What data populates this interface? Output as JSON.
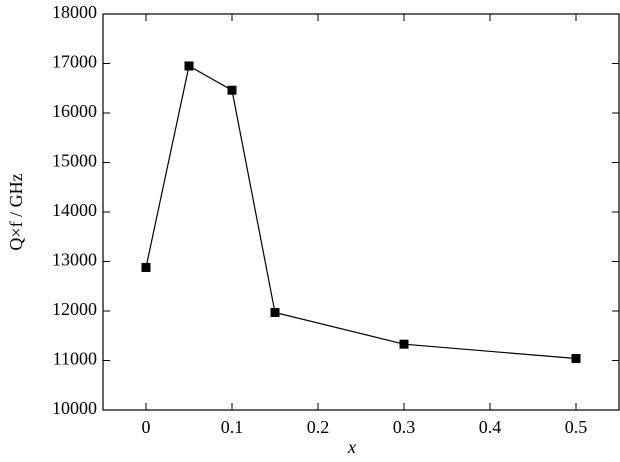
{
  "chart_data": {
    "type": "line",
    "x_label": "x",
    "y_label": "Q×f / GHz",
    "x": [
      0,
      0.05,
      0.1,
      0.15,
      0.3,
      0.5
    ],
    "series": [
      {
        "color": "#000000",
        "values": [
          12880,
          16950,
          16460,
          11970,
          11330,
          11040
        ]
      }
    ],
    "xlim": [
      -0.05,
      0.55
    ],
    "xticks": [
      0,
      0.1,
      0.2,
      0.3,
      0.4,
      0.5
    ],
    "ylim": [
      10000,
      18000
    ],
    "yticks": [
      10000,
      11000,
      12000,
      13000,
      14000,
      15000,
      16000,
      17000,
      18000
    ]
  }
}
